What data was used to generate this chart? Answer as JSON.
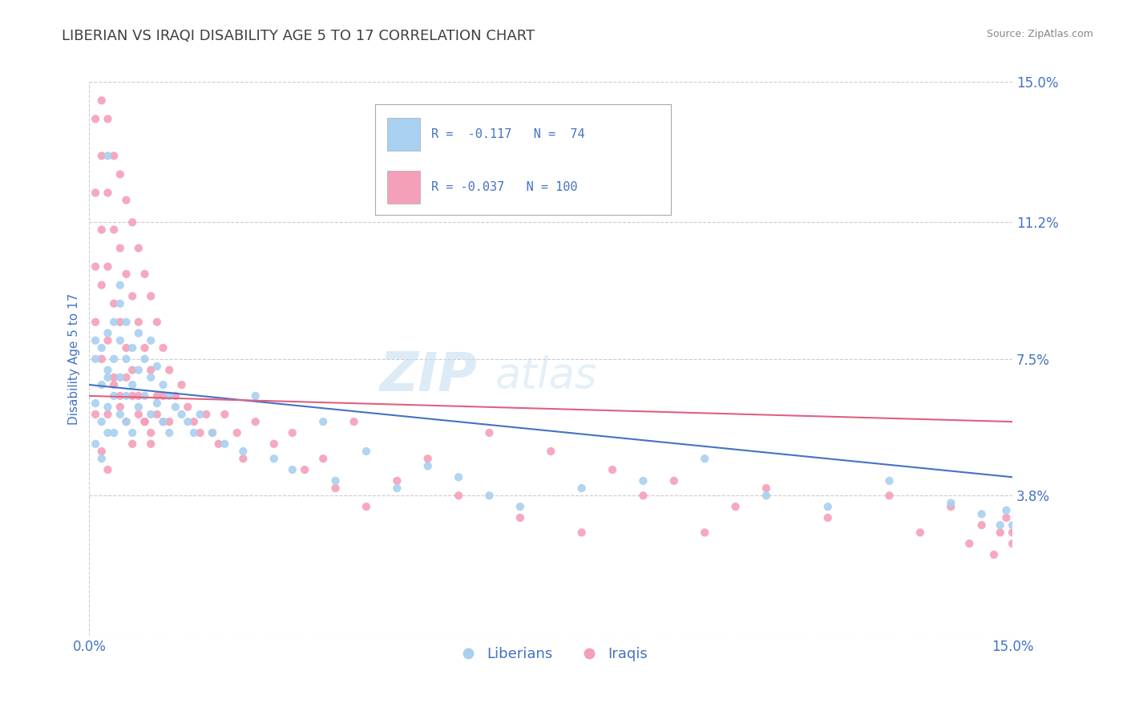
{
  "title": "LIBERIAN VS IRAQI DISABILITY AGE 5 TO 17 CORRELATION CHART",
  "source_text": "Source: ZipAtlas.com",
  "ylabel": "Disability Age 5 to 17",
  "xlim": [
    0.0,
    0.15
  ],
  "ylim": [
    0.0,
    0.15
  ],
  "yticks_right": [
    0.0,
    0.038,
    0.075,
    0.112,
    0.15
  ],
  "ytick_right_labels": [
    "",
    "3.8%",
    "7.5%",
    "11.2%",
    "15.0%"
  ],
  "blue_color": "#A8D0F0",
  "blue_line_color": "#4472C4",
  "pink_color": "#F4A0B8",
  "pink_line_color": "#E06080",
  "blue_R": -0.117,
  "blue_N": 74,
  "pink_R": -0.037,
  "pink_N": 100,
  "legend_label1": "Liberians",
  "legend_label2": "Iraqis",
  "title_color": "#404040",
  "axis_label_color": "#4472C4",
  "tick_color": "#4472C4",
  "grid_color": "#CCCCCC",
  "background_color": "#FFFFFF",
  "liberian_x": [
    0.001,
    0.001,
    0.001,
    0.001,
    0.002,
    0.002,
    0.002,
    0.002,
    0.003,
    0.003,
    0.003,
    0.003,
    0.003,
    0.004,
    0.004,
    0.004,
    0.004,
    0.005,
    0.005,
    0.005,
    0.005,
    0.006,
    0.006,
    0.006,
    0.006,
    0.007,
    0.007,
    0.007,
    0.008,
    0.008,
    0.008,
    0.009,
    0.009,
    0.01,
    0.01,
    0.01,
    0.011,
    0.011,
    0.012,
    0.012,
    0.013,
    0.013,
    0.014,
    0.015,
    0.016,
    0.017,
    0.018,
    0.02,
    0.022,
    0.025,
    0.027,
    0.03,
    0.033,
    0.038,
    0.04,
    0.045,
    0.05,
    0.055,
    0.06,
    0.065,
    0.07,
    0.08,
    0.09,
    0.1,
    0.11,
    0.12,
    0.13,
    0.14,
    0.145,
    0.148,
    0.149,
    0.15,
    0.005,
    0.003
  ],
  "liberian_y": [
    0.063,
    0.075,
    0.052,
    0.08,
    0.068,
    0.058,
    0.078,
    0.048,
    0.072,
    0.062,
    0.082,
    0.055,
    0.07,
    0.065,
    0.075,
    0.055,
    0.085,
    0.07,
    0.08,
    0.06,
    0.09,
    0.065,
    0.075,
    0.058,
    0.085,
    0.068,
    0.078,
    0.055,
    0.072,
    0.062,
    0.082,
    0.065,
    0.075,
    0.07,
    0.06,
    0.08,
    0.063,
    0.073,
    0.058,
    0.068,
    0.055,
    0.065,
    0.062,
    0.06,
    0.058,
    0.055,
    0.06,
    0.055,
    0.052,
    0.05,
    0.065,
    0.048,
    0.045,
    0.058,
    0.042,
    0.05,
    0.04,
    0.046,
    0.043,
    0.038,
    0.035,
    0.04,
    0.042,
    0.048,
    0.038,
    0.035,
    0.042,
    0.036,
    0.033,
    0.03,
    0.034,
    0.03,
    0.095,
    0.13
  ],
  "iraqi_x": [
    0.001,
    0.001,
    0.001,
    0.001,
    0.001,
    0.002,
    0.002,
    0.002,
    0.002,
    0.002,
    0.003,
    0.003,
    0.003,
    0.003,
    0.003,
    0.004,
    0.004,
    0.004,
    0.004,
    0.005,
    0.005,
    0.005,
    0.005,
    0.006,
    0.006,
    0.006,
    0.006,
    0.007,
    0.007,
    0.007,
    0.007,
    0.008,
    0.008,
    0.008,
    0.009,
    0.009,
    0.009,
    0.01,
    0.01,
    0.01,
    0.011,
    0.011,
    0.012,
    0.012,
    0.013,
    0.014,
    0.015,
    0.016,
    0.017,
    0.018,
    0.019,
    0.02,
    0.021,
    0.022,
    0.024,
    0.025,
    0.027,
    0.03,
    0.033,
    0.035,
    0.038,
    0.04,
    0.043,
    0.045,
    0.05,
    0.055,
    0.06,
    0.065,
    0.07,
    0.075,
    0.08,
    0.085,
    0.09,
    0.095,
    0.1,
    0.105,
    0.11,
    0.12,
    0.13,
    0.135,
    0.14,
    0.143,
    0.145,
    0.147,
    0.148,
    0.149,
    0.15,
    0.15,
    0.002,
    0.003,
    0.004,
    0.005,
    0.006,
    0.007,
    0.008,
    0.009,
    0.01,
    0.011,
    0.012,
    0.013
  ],
  "iraqi_y": [
    0.12,
    0.1,
    0.085,
    0.14,
    0.06,
    0.13,
    0.11,
    0.095,
    0.075,
    0.145,
    0.12,
    0.1,
    0.08,
    0.14,
    0.06,
    0.13,
    0.11,
    0.09,
    0.07,
    0.125,
    0.105,
    0.085,
    0.065,
    0.118,
    0.098,
    0.078,
    0.058,
    0.112,
    0.092,
    0.072,
    0.052,
    0.105,
    0.085,
    0.065,
    0.098,
    0.078,
    0.058,
    0.092,
    0.072,
    0.052,
    0.085,
    0.065,
    0.078,
    0.058,
    0.072,
    0.065,
    0.068,
    0.062,
    0.058,
    0.055,
    0.06,
    0.055,
    0.052,
    0.06,
    0.055,
    0.048,
    0.058,
    0.052,
    0.055,
    0.045,
    0.048,
    0.04,
    0.058,
    0.035,
    0.042,
    0.048,
    0.038,
    0.055,
    0.032,
    0.05,
    0.028,
    0.045,
    0.038,
    0.042,
    0.028,
    0.035,
    0.04,
    0.032,
    0.038,
    0.028,
    0.035,
    0.025,
    0.03,
    0.022,
    0.028,
    0.032,
    0.028,
    0.025,
    0.05,
    0.045,
    0.068,
    0.062,
    0.07,
    0.065,
    0.06,
    0.058,
    0.055,
    0.06,
    0.065,
    0.058
  ]
}
